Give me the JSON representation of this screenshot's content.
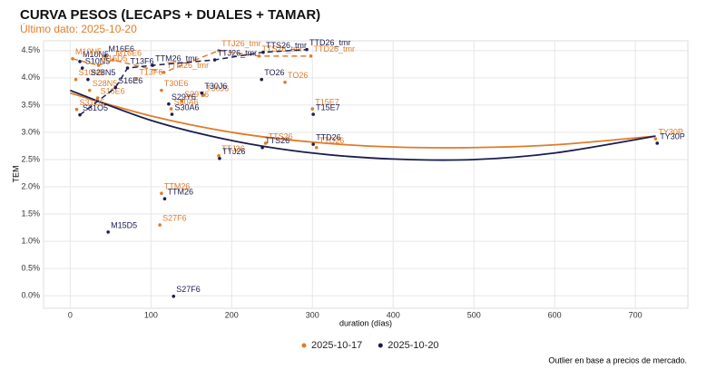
{
  "chart_data": {
    "type": "scatter",
    "title": "CURVA PESOS (LECAPS + DUALES + TAMAR)",
    "subtitle": "Último dato: 2025-10-20",
    "x_label": "duration (días)",
    "y_label": "TEM",
    "note": "Outlier en base a precios de mercado.",
    "xlim": [
      -33,
      765
    ],
    "ylim": [
      -0.23,
      4.68
    ],
    "xticks": [
      0,
      100,
      200,
      300,
      400,
      500,
      600,
      700
    ],
    "yticks": [
      {
        "value": 0,
        "label": "0.0%"
      },
      {
        "value": 0.5,
        "label": "0.5%"
      },
      {
        "value": 1,
        "label": "1.0%"
      },
      {
        "value": 1.5,
        "label": "1.5%"
      },
      {
        "value": 2,
        "label": "2.0%"
      },
      {
        "value": 2.5,
        "label": "2.5%"
      },
      {
        "value": 3,
        "label": "3.0%"
      },
      {
        "value": 3.5,
        "label": "3.5%"
      },
      {
        "value": 4,
        "label": "4.0%"
      },
      {
        "value": 4.5,
        "label": "4.5%"
      }
    ],
    "grid": true,
    "series": [
      {
        "name": "2025-10-17",
        "color": "#e07b2a",
        "labels": [
          "S27F6",
          "TTM26",
          "TTJ26",
          "TTS26",
          "TTD26",
          "TY30P",
          "T15E7",
          "TO26",
          "S30A6",
          "S29Y6",
          "T30J6",
          "T30E6",
          "S16E6",
          "S28N5",
          "S10N5",
          "S31O5",
          "T13F6"
        ],
        "x": [
          111,
          113,
          184,
          242,
          305,
          725,
          300,
          266,
          125,
          138,
          165,
          113,
          34,
          24,
          7,
          8,
          82
        ],
        "values": [
          1.3,
          1.88,
          2.57,
          2.8,
          2.72,
          2.88,
          3.43,
          3.92,
          3.43,
          3.57,
          3.68,
          3.77,
          3.63,
          3.77,
          3.97,
          3.42,
          3.98
        ]
      },
      {
        "name": "2025-10-20",
        "color": "#1b1d4f",
        "labels": [
          "M15D5",
          "S27F6",
          "TTM26",
          "TTJ26",
          "TTS26",
          "TTD26",
          "TY30P",
          "T15E7",
          "TO26",
          "S30A6",
          "S29Y6",
          "T30J6",
          "S28N5",
          "S10N5",
          "M10N5",
          "M16E6"
        ],
        "x": [
          47,
          128,
          117,
          185,
          238,
          301,
          727,
          301,
          237,
          126,
          122,
          163,
          22,
          15,
          12,
          44
        ],
        "values": [
          1.17,
          -0.01,
          1.78,
          2.52,
          2.72,
          2.78,
          2.8,
          3.33,
          3.97,
          3.33,
          3.52,
          3.72,
          3.97,
          4.18,
          4.3,
          4.4
        ]
      },
      {
        "color": "#e07b2a",
        "dashed": true,
        "labels": [
          "M10N5",
          "M15D5",
          "M16E6",
          "TTM26_tmr",
          "TTJ26_tmr",
          "TTS26_tmr",
          "TTD26_tmr"
        ],
        "x": [
          3,
          35,
          53,
          116,
          184,
          234,
          298
        ],
        "values": [
          4.35,
          4.23,
          4.33,
          4.1,
          4.5,
          4.4,
          4.4
        ]
      },
      {
        "color": "#1b1d4f",
        "dashed": true,
        "labels": [
          "S31O5",
          "S16E6",
          "T13F6",
          "TTM26_tmr",
          "TTJ26_tmr",
          "TTS26_tmr",
          "TTD26_tmr"
        ],
        "x": [
          12,
          56,
          71,
          102,
          179,
          239,
          293
        ],
        "values": [
          3.32,
          3.82,
          4.18,
          4.23,
          4.33,
          4.47,
          4.52
        ]
      }
    ],
    "curves": [
      {
        "color": "#e07b2a",
        "x": [
          0,
          100,
          200,
          300,
          400,
          500,
          600,
          725
        ],
        "values": [
          3.72,
          3.3,
          3.0,
          2.82,
          2.73,
          2.72,
          2.77,
          2.93
        ]
      },
      {
        "color": "#1b1d4f",
        "x": [
          0,
          100,
          200,
          300,
          400,
          500,
          600,
          725
        ],
        "values": [
          3.77,
          3.22,
          2.85,
          2.62,
          2.51,
          2.5,
          2.62,
          2.93
        ]
      }
    ]
  }
}
